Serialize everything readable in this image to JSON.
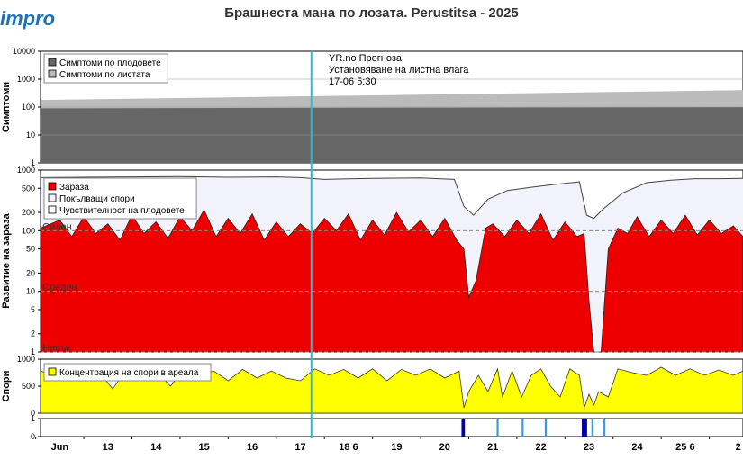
{
  "header": {
    "logo_text": "impro",
    "title": "Брашнеста мана по лозата.  Perustitsa - 2025"
  },
  "forecast_marker": {
    "line1": "YR.no Прогноза",
    "line2": "Установяване на листна влага",
    "line3": "17-06 5:30"
  },
  "colors": {
    "fruit_symptoms": "#666666",
    "leaf_symptoms": "#bbbbbb",
    "infection": "#ee0000",
    "germinating": "#f2f2fa",
    "spores": "#ffff00",
    "forecast_line": "#22c0d8",
    "wetness_dark": "#0000aa",
    "wetness_light": "#3399ee"
  },
  "chart_data": [
    {
      "type": "area",
      "panel": "symptoms",
      "ylabel": "Симптоми",
      "yscale": "log",
      "ylim": [
        1,
        10000
      ],
      "yticks": [
        "1",
        "10",
        "100",
        "1000",
        "10000"
      ],
      "legend": [
        "Симптоми по плодовете",
        "Симптоми по листата"
      ],
      "legend_position": "top-left",
      "series": [
        {
          "name": "Симптоми по плодовете",
          "x": [
            11.6,
            26.2
          ],
          "values": [
            90,
            100
          ]
        },
        {
          "name": "Симптоми по листата",
          "x": [
            11.6,
            26.2
          ],
          "values": [
            180,
            400
          ]
        }
      ]
    },
    {
      "type": "area",
      "panel": "infection",
      "ylabel": "Развитие на зараза",
      "yscale": "log",
      "ylim": [
        1,
        1000
      ],
      "yticks": [
        "1",
        "2",
        "5",
        "10",
        "20",
        "50",
        "100",
        "200",
        "500",
        "1000"
      ],
      "risk_levels": [
        {
          "label": "Силен",
          "value": 100
        },
        {
          "label": "Среден",
          "value": 10
        },
        {
          "label": "Нисък",
          "value": 1
        }
      ],
      "legend": [
        "Зараза",
        "Покълващи спори",
        "Чувствителност на плодовете"
      ],
      "legend_position": "top-left",
      "series": [
        {
          "name": "Зараза",
          "x": [
            11.6,
            12.0,
            12.25,
            12.5,
            12.75,
            13.0,
            13.25,
            13.5,
            13.75,
            14.0,
            14.25,
            14.5,
            14.75,
            15.0,
            15.25,
            15.5,
            15.75,
            16.0,
            16.25,
            16.5,
            16.75,
            17.0,
            17.25,
            17.5,
            17.75,
            18.0,
            18.25,
            18.5,
            18.75,
            19.0,
            19.25,
            19.5,
            19.75,
            20.0,
            20.25,
            20.4,
            20.5,
            20.65,
            20.85,
            21.0,
            21.25,
            21.5,
            21.75,
            22.0,
            22.25,
            22.5,
            22.75,
            22.9,
            23.0,
            23.1,
            23.25,
            23.4,
            23.6,
            23.8,
            24.0,
            24.25,
            24.5,
            24.75,
            25.0,
            25.25,
            25.5,
            25.75,
            26.0,
            26.2
          ],
          "values": [
            110,
            150,
            80,
            170,
            90,
            130,
            70,
            180,
            90,
            140,
            75,
            170,
            100,
            220,
            80,
            160,
            90,
            190,
            70,
            140,
            80,
            130,
            90,
            160,
            100,
            190,
            70,
            150,
            85,
            200,
            95,
            150,
            80,
            160,
            70,
            50,
            8,
            15,
            110,
            130,
            80,
            150,
            90,
            190,
            70,
            140,
            80,
            90,
            7,
            1,
            1,
            50,
            110,
            90,
            170,
            80,
            150,
            90,
            180,
            85,
            150,
            90,
            120,
            80
          ]
        },
        {
          "name": "Покълващи спори",
          "x": [
            11.6,
            12.5,
            13.5,
            14.5,
            15.5,
            16.5,
            17.0,
            17.5,
            18.5,
            19.5,
            20.2,
            20.4,
            20.6,
            20.9,
            21.3,
            21.8,
            22.3,
            22.8,
            22.95,
            23.1,
            23.3,
            23.7,
            24.2,
            24.7,
            25.2,
            25.7,
            26.2
          ],
          "values": [
            750,
            760,
            770,
            780,
            760,
            770,
            750,
            700,
            730,
            740,
            700,
            250,
            180,
            330,
            460,
            520,
            580,
            640,
            180,
            160,
            230,
            420,
            620,
            680,
            720,
            720,
            730
          ]
        }
      ]
    },
    {
      "type": "area",
      "panel": "spores",
      "ylabel": "Спори",
      "ylim": [
        0,
        1000
      ],
      "yticks": [
        "0",
        "500",
        "1000"
      ],
      "legend": [
        "Концентрация на спори в ареала"
      ],
      "legend_position": "top-left",
      "series": [
        {
          "name": "Концентрация на спори в ареала",
          "x": [
            11.6,
            11.9,
            12.2,
            12.5,
            12.8,
            13.1,
            13.4,
            13.7,
            14.0,
            14.3,
            14.6,
            14.9,
            15.2,
            15.5,
            15.8,
            16.1,
            16.4,
            16.7,
            17.0,
            17.3,
            17.6,
            17.9,
            18.2,
            18.5,
            18.8,
            19.1,
            19.4,
            19.7,
            20.0,
            20.3,
            20.4,
            20.5,
            20.7,
            20.9,
            21.1,
            21.2,
            21.4,
            21.6,
            21.8,
            22.0,
            22.2,
            22.4,
            22.6,
            22.8,
            22.9,
            23.0,
            23.1,
            23.2,
            23.4,
            23.6,
            23.9,
            24.2,
            24.5,
            24.8,
            25.1,
            25.4,
            25.7,
            26.0,
            26.2
          ],
          "values": [
            780,
            700,
            820,
            650,
            780,
            450,
            820,
            650,
            790,
            500,
            820,
            700,
            780,
            600,
            810,
            650,
            780,
            650,
            600,
            820,
            700,
            810,
            650,
            820,
            600,
            810,
            700,
            820,
            650,
            780,
            100,
            400,
            700,
            400,
            820,
            300,
            780,
            300,
            700,
            820,
            500,
            300,
            820,
            700,
            100,
            350,
            150,
            400,
            300,
            820,
            750,
            700,
            850,
            700,
            820,
            700,
            800,
            700,
            780
          ]
        }
      ]
    },
    {
      "type": "bar",
      "panel": "leaf_wetness",
      "ylim": [
        0,
        1
      ],
      "yticks": [
        "0",
        "1"
      ],
      "xticks": [
        "Jun",
        "13",
        "14",
        "15",
        "16",
        "17",
        "18 6",
        "19",
        "20",
        "21",
        "22",
        "23",
        "24",
        "25 6",
        "2"
      ],
      "events": [
        {
          "start": 20.35,
          "end": 20.42,
          "level": "dark"
        },
        {
          "start": 21.08,
          "end": 21.12,
          "level": "light"
        },
        {
          "start": 21.6,
          "end": 21.64,
          "level": "light"
        },
        {
          "start": 22.08,
          "end": 22.12,
          "level": "light"
        },
        {
          "start": 22.85,
          "end": 22.96,
          "level": "dark"
        },
        {
          "start": 23.05,
          "end": 23.09,
          "level": "light"
        },
        {
          "start": 23.3,
          "end": 23.34,
          "level": "light"
        }
      ]
    }
  ]
}
